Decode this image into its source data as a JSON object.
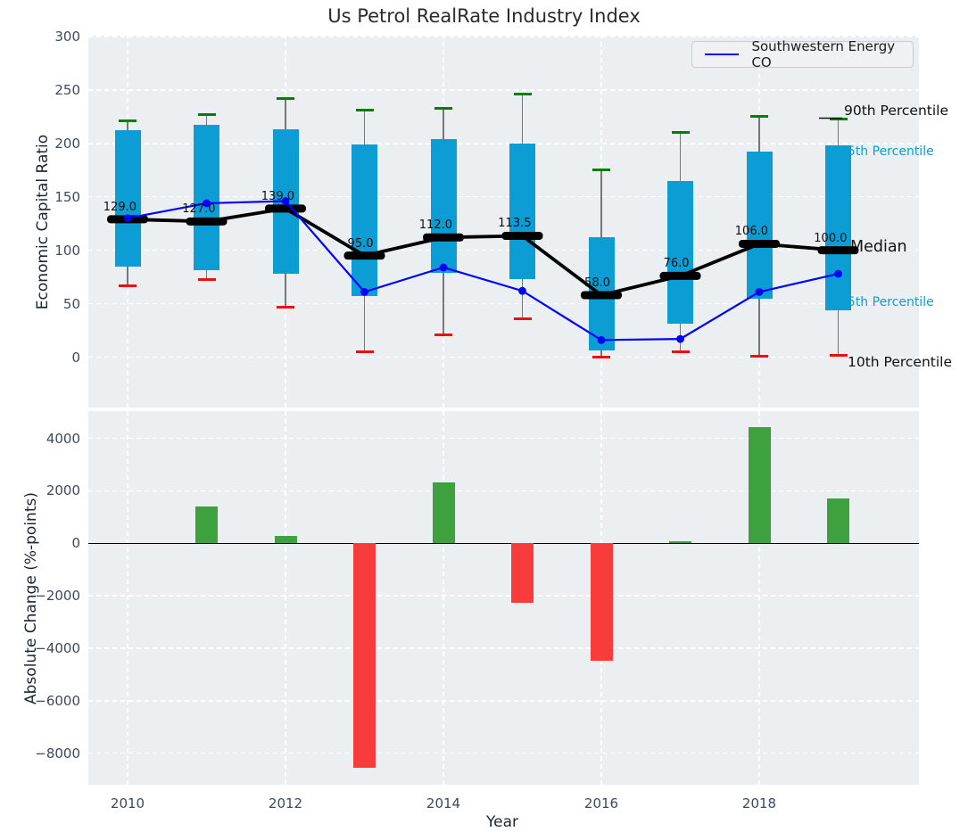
{
  "title": "Us Petrol RealRate Industry Index",
  "legend": {
    "label": "Southwestern Energy CO"
  },
  "right_labels": {
    "p90": "90th Percentile",
    "p75": "75th Percentile",
    "median": "Median",
    "p25": "25th Percentile",
    "p10": "10th Percentile"
  },
  "colors": {
    "box": "#0c9dd4",
    "whisker": "#777777",
    "cap_high": "#008000",
    "cap_low": "#ee1010",
    "median": "#000000",
    "company": "#0000ff",
    "bar_positive": "#3da23d",
    "bar_negative": "#f83b3b",
    "axes_background": "#ebeff1",
    "grid": "#ffffff",
    "tick_label": "#3d4a59"
  },
  "chart_data": [
    {
      "type": "box",
      "title": "Us Petrol RealRate Industry Index",
      "ylabel": "Economic Capital Ratio",
      "x": [
        2010,
        2011,
        2012,
        2013,
        2014,
        2015,
        2016,
        2017,
        2018,
        2019
      ],
      "yticks": [
        0,
        50,
        100,
        150,
        200,
        250,
        300
      ],
      "ylim": [
        -48,
        301
      ],
      "grid": true,
      "legend_position": "upper right",
      "series": [
        {
          "name": "90th Percentile",
          "values": [
            221,
            227,
            242,
            231,
            233,
            246,
            175,
            210,
            225,
            223
          ]
        },
        {
          "name": "75th Percentile",
          "values": [
            212,
            217,
            213,
            199,
            204,
            200,
            112,
            165,
            192,
            198
          ]
        },
        {
          "name": "Median",
          "values": [
            129,
            127,
            139,
            95,
            112,
            113.5,
            58,
            76,
            106,
            100
          ]
        },
        {
          "name": "25th Percentile",
          "values": [
            85,
            81,
            78,
            57,
            79,
            73,
            6,
            31,
            55,
            44
          ]
        },
        {
          "name": "10th Percentile",
          "values": [
            67,
            73,
            47,
            5,
            21,
            36,
            0,
            5,
            1,
            2
          ]
        },
        {
          "name": "Southwestern Energy CO",
          "values": [
            130,
            144,
            146,
            61,
            84,
            62,
            16,
            17,
            61,
            78
          ]
        }
      ],
      "median_labels": [
        "129.0",
        "127.0",
        "139.0",
        "95.0",
        "112.0",
        "113.5",
        "58.0",
        "76.0",
        "106.0",
        "100.0"
      ]
    },
    {
      "type": "bar",
      "ylabel": "Absolute Change (%-points)",
      "xlabel": "Year",
      "x": [
        2010,
        2011,
        2012,
        2013,
        2014,
        2015,
        2016,
        2017,
        2018,
        2019
      ],
      "values": [
        0,
        1400,
        270,
        -8540,
        2310,
        -2280,
        -4490,
        80,
        4420,
        1700
      ],
      "yticks": [
        4000,
        2000,
        0,
        -2000,
        -4000,
        -6000,
        -8000
      ],
      "xticks": [
        2010,
        2012,
        2014,
        2016,
        2018
      ],
      "ylim": [
        -9240,
        5045
      ],
      "grid": true
    }
  ]
}
